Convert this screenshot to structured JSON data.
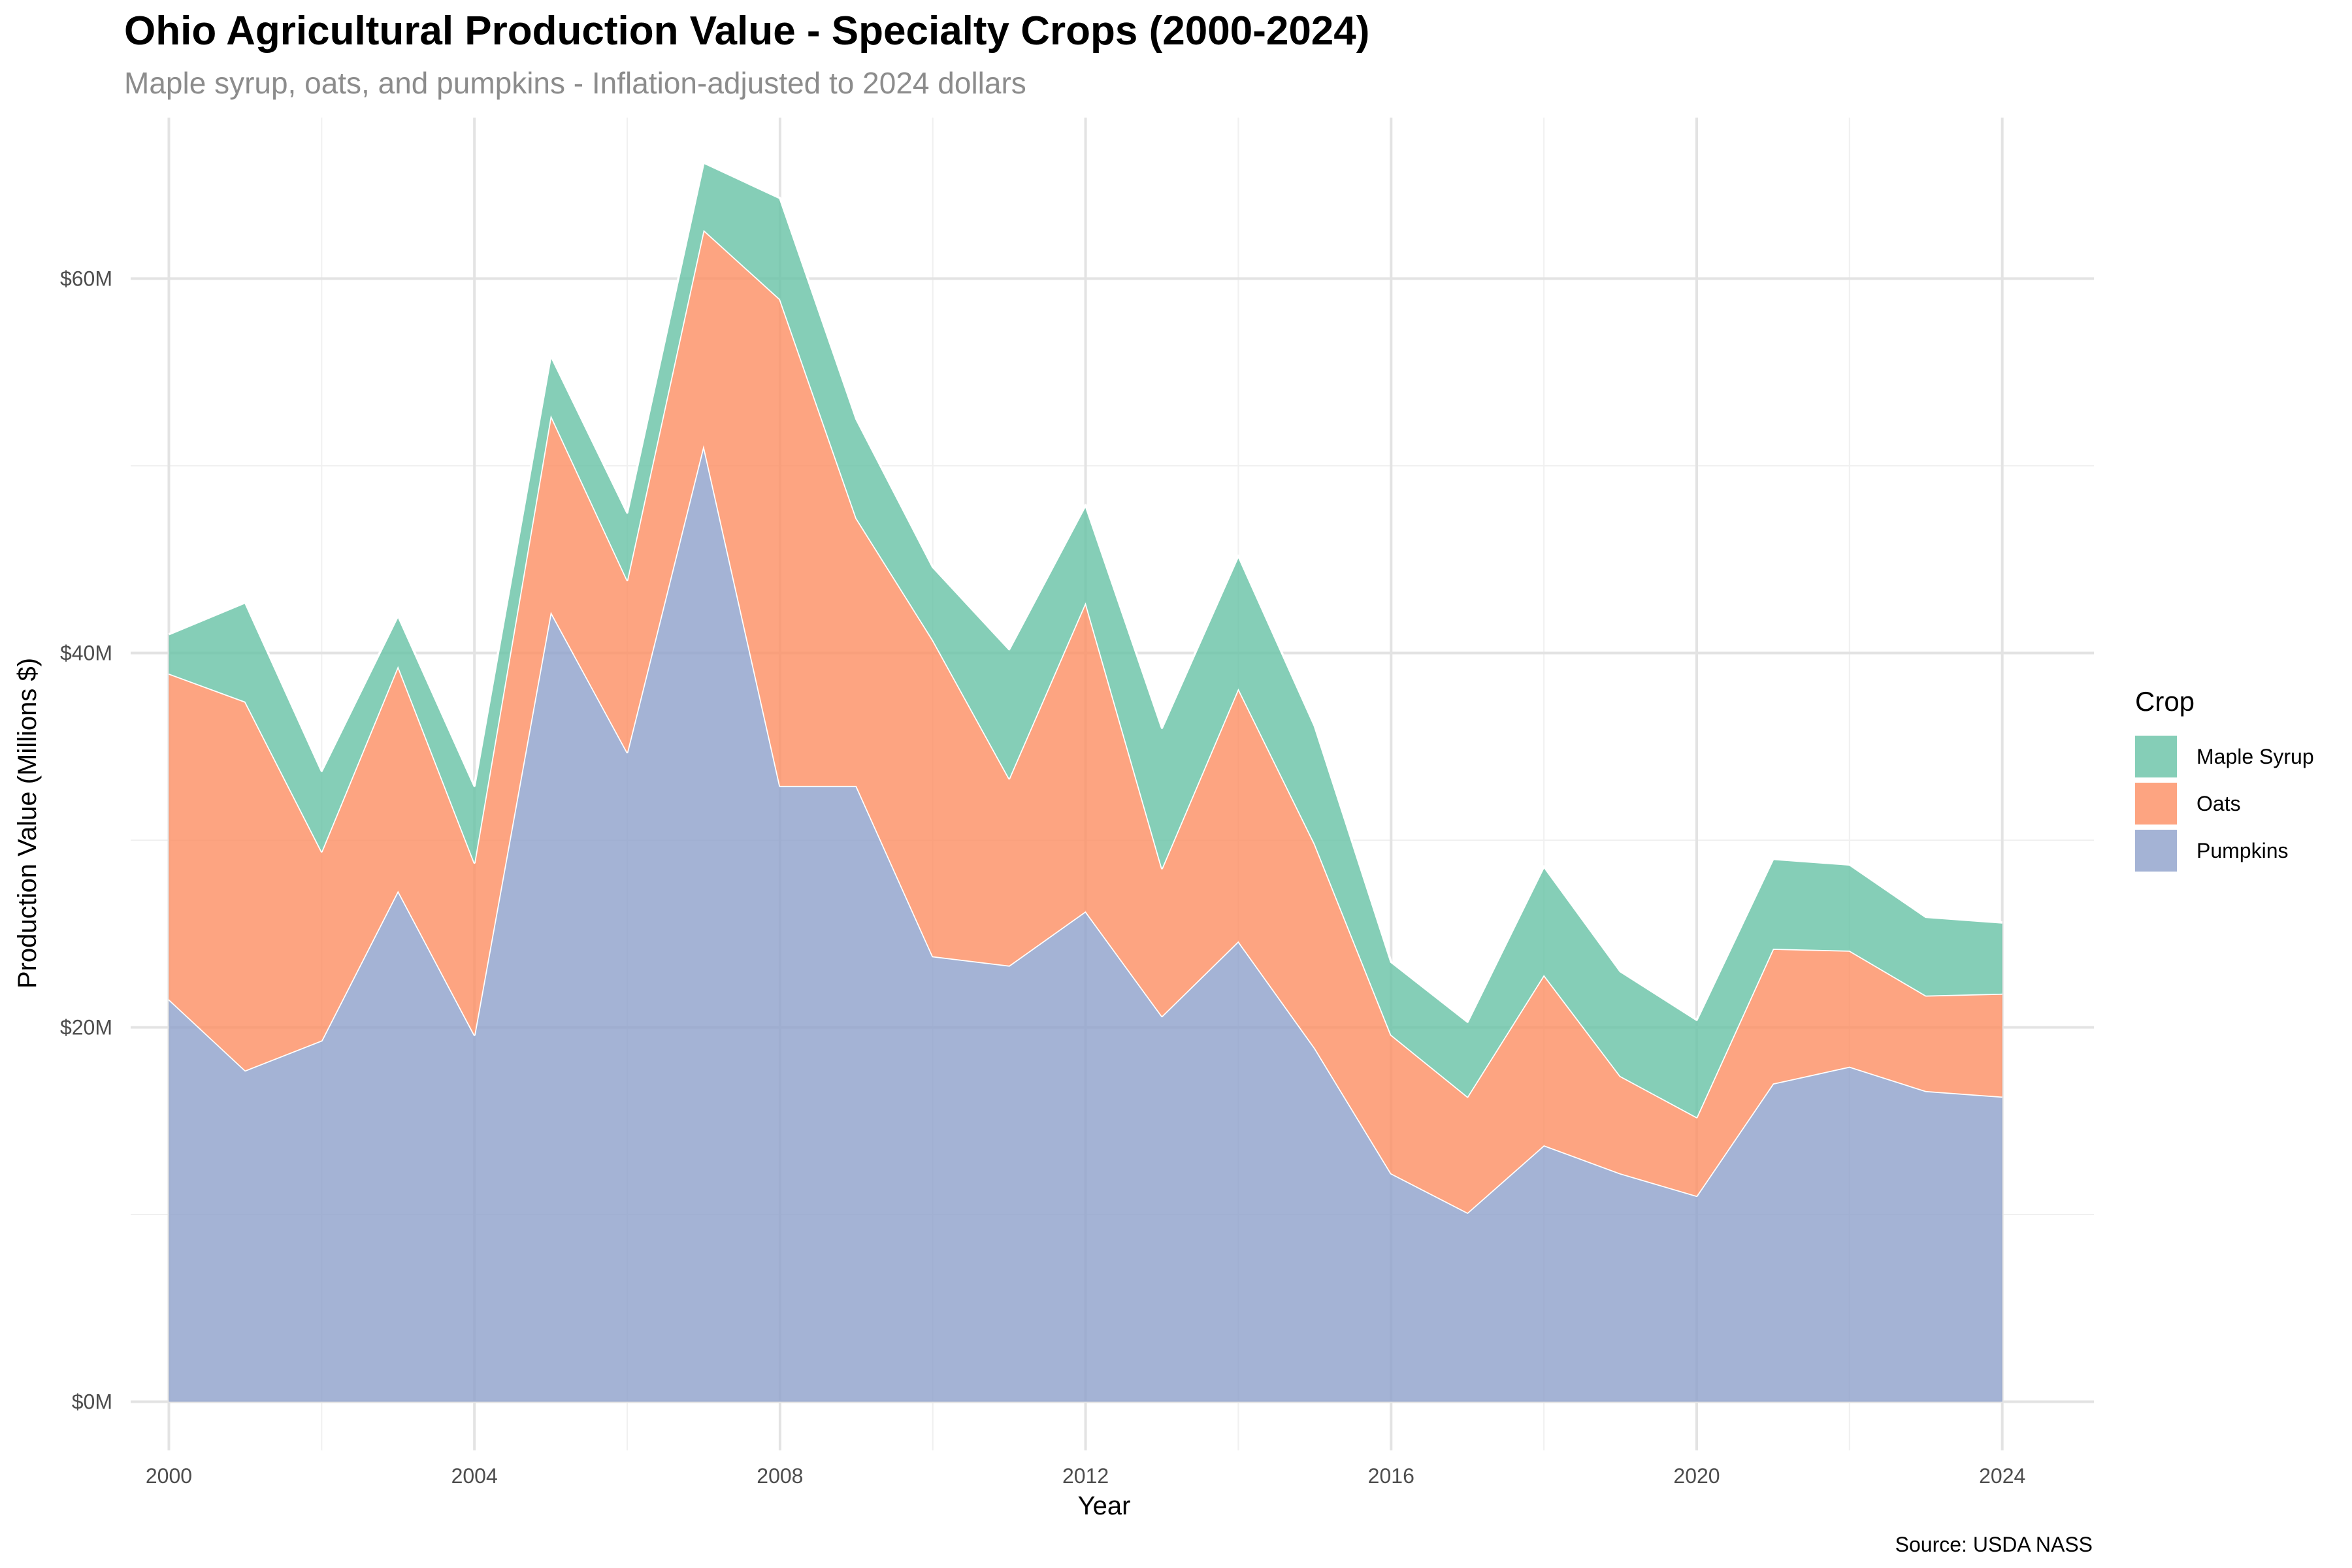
{
  "chart_data": {
    "type": "area",
    "stacked": true,
    "title": "Ohio Agricultural Production Value - Specialty Crops (2000-2024)",
    "subtitle": "Maple syrup, oats, and pumpkins - Inflation-adjusted to 2024 dollars",
    "xlabel": "Year",
    "ylabel": "Production Value (Millions $)",
    "caption": "Source: USDA NASS",
    "legend_title": "Crop",
    "legend_position": "right",
    "grid": true,
    "x": [
      2000,
      2001,
      2002,
      2003,
      2004,
      2005,
      2006,
      2007,
      2008,
      2009,
      2010,
      2011,
      2012,
      2013,
      2014,
      2015,
      2016,
      2017,
      2018,
      2019,
      2020,
      2021,
      2022,
      2023,
      2024
    ],
    "xlim": [
      1999.5,
      2025.2
    ],
    "ylim": [
      -2.6,
      68.6
    ],
    "x_ticks": [
      2000,
      2004,
      2008,
      2012,
      2016,
      2020,
      2024
    ],
    "y_ticks": [
      0,
      20,
      40,
      60
    ],
    "y_tick_labels": [
      "$0M",
      "$20M",
      "$40M",
      "$60M"
    ],
    "series": [
      {
        "name": "Pumpkins",
        "color": "#8da0cb",
        "values": [
          21.5,
          17.7,
          19.3,
          27.3,
          19.6,
          42.2,
          34.7,
          51.1,
          32.9,
          32.9,
          23.8,
          23.3,
          26.2,
          20.6,
          24.6,
          18.9,
          12.2,
          10.1,
          13.7,
          12.2,
          11.0,
          17.0,
          17.9,
          16.6,
          16.3
        ]
      },
      {
        "name": "Oats",
        "color": "#fc8d62",
        "values": [
          17.4,
          19.7,
          10.1,
          12.0,
          9.2,
          10.5,
          9.2,
          11.5,
          26.0,
          14.3,
          16.9,
          10.0,
          16.5,
          7.9,
          13.5,
          10.9,
          7.4,
          6.2,
          9.1,
          5.2,
          4.2,
          7.2,
          6.2,
          5.1,
          5.5
        ]
      },
      {
        "name": "Maple Syrup",
        "color": "#66c2a5",
        "values": [
          2.1,
          5.3,
          4.3,
          2.7,
          4.1,
          3.2,
          3.6,
          3.6,
          5.4,
          5.3,
          3.9,
          6.9,
          5.2,
          7.5,
          7.1,
          6.3,
          3.9,
          4.0,
          5.8,
          5.6,
          5.2,
          4.8,
          4.6,
          4.2,
          3.8
        ]
      }
    ]
  }
}
